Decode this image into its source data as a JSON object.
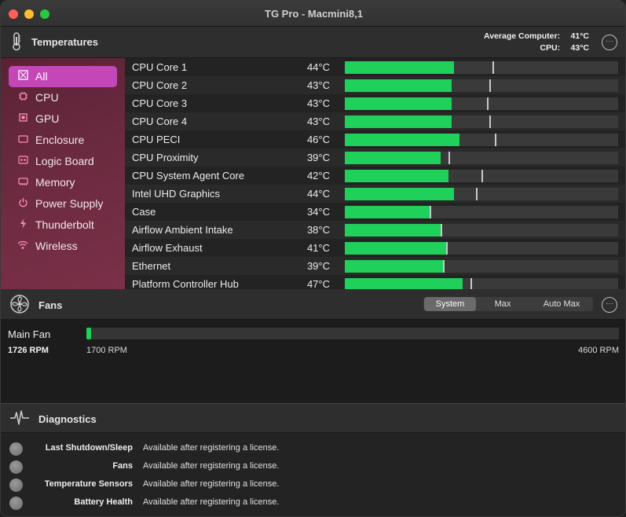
{
  "window": {
    "title": "TG Pro - Macmini8,1"
  },
  "temperatures": {
    "title": "Temperatures",
    "average_label": "Average Computer:",
    "average_value": "41°C",
    "cpu_label": "CPU:",
    "cpu_value": "43°C",
    "more": "···",
    "sidebar": [
      {
        "label": "All",
        "icon": "all-sensors-icon",
        "active": true
      },
      {
        "label": "CPU",
        "icon": "cpu-chip-icon"
      },
      {
        "label": "GPU",
        "icon": "gpu-chip-icon"
      },
      {
        "label": "Enclosure",
        "icon": "enclosure-icon"
      },
      {
        "label": "Logic Board",
        "icon": "logic-board-icon"
      },
      {
        "label": "Memory",
        "icon": "memory-icon"
      },
      {
        "label": "Power Supply",
        "icon": "power-icon"
      },
      {
        "label": "Thunderbolt",
        "icon": "thunderbolt-icon"
      },
      {
        "label": "Wireless",
        "icon": "wifi-icon"
      }
    ],
    "sensors": [
      {
        "name": "CPU Core 1",
        "value": "44°C",
        "level": 0.4,
        "max_marker": 0.54
      },
      {
        "name": "CPU Core 2",
        "value": "43°C",
        "level": 0.39,
        "max_marker": 0.53
      },
      {
        "name": "CPU Core 3",
        "value": "43°C",
        "level": 0.39,
        "max_marker": 0.52
      },
      {
        "name": "CPU Core 4",
        "value": "43°C",
        "level": 0.39,
        "max_marker": 0.53
      },
      {
        "name": "CPU PECI",
        "value": "46°C",
        "level": 0.42,
        "max_marker": 0.55
      },
      {
        "name": "CPU Proximity",
        "value": "39°C",
        "level": 0.35,
        "max_marker": 0.38
      },
      {
        "name": "CPU System Agent Core",
        "value": "42°C",
        "level": 0.38,
        "max_marker": 0.5
      },
      {
        "name": "Intel UHD Graphics",
        "value": "44°C",
        "level": 0.4,
        "max_marker": 0.48
      },
      {
        "name": "Case",
        "value": "34°C",
        "level": 0.31,
        "max_marker": 0.31
      },
      {
        "name": "Airflow Ambient Intake",
        "value": "38°C",
        "level": 0.35,
        "max_marker": 0.35
      },
      {
        "name": "Airflow Exhaust",
        "value": "41°C",
        "level": 0.37,
        "max_marker": 0.37
      },
      {
        "name": "Ethernet",
        "value": "39°C",
        "level": 0.36,
        "max_marker": 0.36
      },
      {
        "name": "Platform Controller Hub",
        "value": "47°C",
        "level": 0.43,
        "max_marker": 0.46
      }
    ]
  },
  "fans": {
    "title": "Fans",
    "modes": [
      "System",
      "Max",
      "Auto Max"
    ],
    "selected_mode": "System",
    "more": "···",
    "items": [
      {
        "name": "Main Fan",
        "rpm": "1726 RPM",
        "min_label": "1700 RPM",
        "max_label": "4600 RPM",
        "level": 0.009
      }
    ]
  },
  "diagnostics": {
    "title": "Diagnostics",
    "items": [
      {
        "label": "Last Shutdown/Sleep",
        "status": "Available after registering a license."
      },
      {
        "label": "Fans",
        "status": "Available after registering a license."
      },
      {
        "label": "Temperature Sensors",
        "status": "Available after registering a license."
      },
      {
        "label": "Battery Health",
        "status": "Available after registering a license."
      }
    ]
  },
  "colors": {
    "accent_green": "#1fd05a",
    "sidebar_active": "#c447b8",
    "sidebar_bg": "#6b2a3f"
  }
}
